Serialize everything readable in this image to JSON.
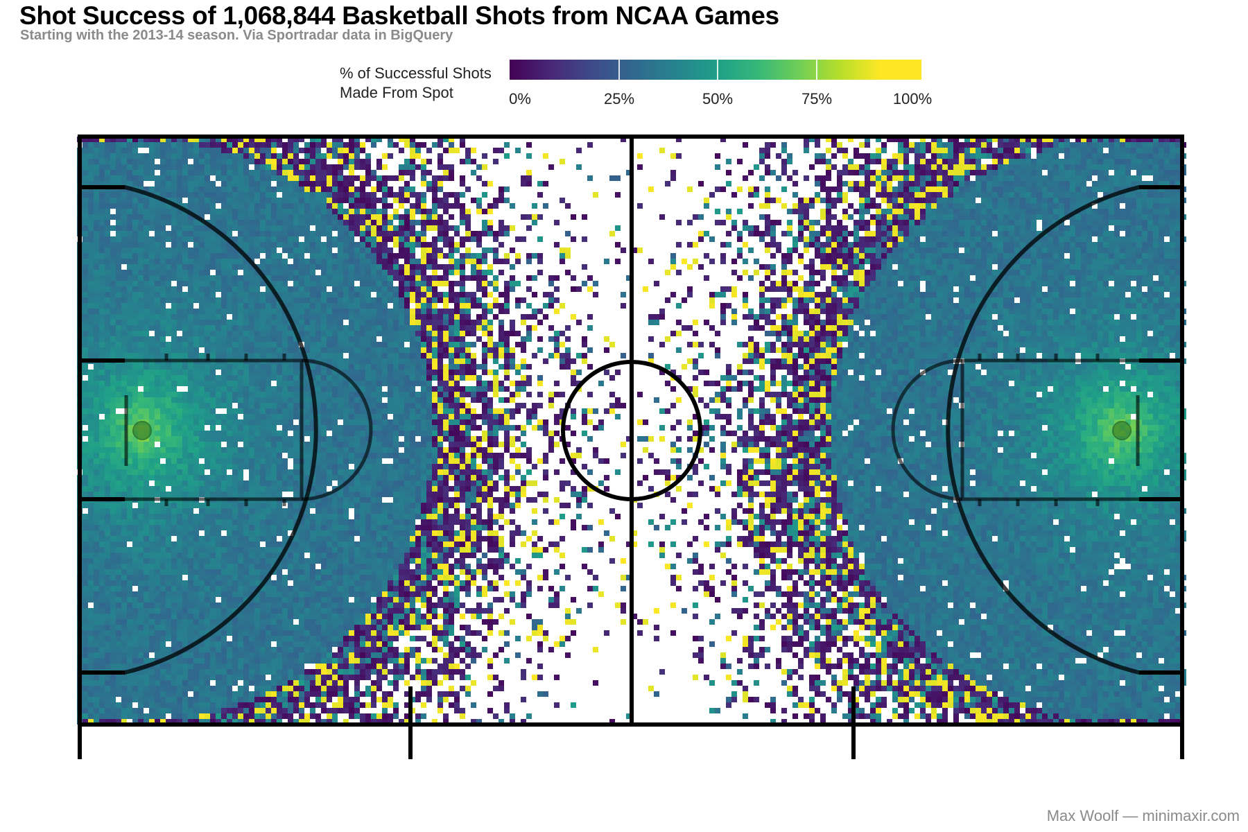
{
  "title": "Shot Success of 1,068,844 Basketball Shots from NCAA Games",
  "subtitle": "Starting with the 2013-14 season. Via Sportradar data in BigQuery",
  "legend": {
    "title_line1": "% of Successful Shots",
    "title_line2": "Made From Spot",
    "ticks": [
      "0%",
      "25%",
      "50%",
      "75%",
      "100%"
    ]
  },
  "credit": "Max Woolf — minimaxir.com",
  "colors": {
    "viridis_low": "#440154",
    "viridis_mid": "#21918c",
    "viridis_high": "#fde725",
    "court_lines": "#000000"
  },
  "chart_data": {
    "type": "heatmap",
    "title": "Shot Success of 1,068,844 Basketball Shots from NCAA Games",
    "subtitle": "Starting with the 2013-14 season. Via Sportradar data in BigQuery",
    "value_name": "% of Successful Shots Made From Spot",
    "value_range": [
      0,
      100
    ],
    "colorscale": "viridis",
    "legend_placement": "top",
    "grid": false,
    "total_shots": 1068844,
    "notes": "Binned shot locations on a full NCAA court; basket areas approach ~75-90% success, mid-range and three-point areas ~35-45%, sparse half-court bins are noisy (0% or 100%)."
  }
}
